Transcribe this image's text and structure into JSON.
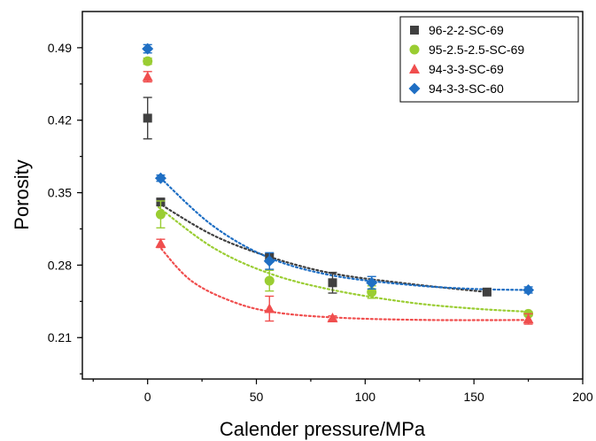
{
  "chart_data": {
    "type": "scatter",
    "xlabel": "Calender pressure/MPa",
    "ylabel": "Porosity",
    "xlim": [
      -30,
      200
    ],
    "ylim": [
      0.17,
      0.525
    ],
    "x_ticks": [
      0,
      50,
      100,
      150,
      200
    ],
    "x_tick_labels": [
      "0",
      "50",
      "100",
      "150",
      "200"
    ],
    "y_ticks": [
      0.21,
      0.28,
      0.35,
      0.42,
      0.49
    ],
    "y_tick_labels": [
      "0.21",
      "0.28",
      "0.35",
      "0.42",
      "0.49"
    ],
    "grid": false,
    "legend_position": "top-right",
    "series": [
      {
        "name": "96-2-2-SC-69",
        "marker": "square",
        "color": "#404040",
        "points": [
          {
            "x": 0,
            "y": 0.422,
            "err": 0.02
          },
          {
            "x": 6,
            "y": 0.341,
            "err": 0.003
          },
          {
            "x": 56,
            "y": 0.287,
            "err": 0.004
          },
          {
            "x": 85,
            "y": 0.263,
            "err": 0.01
          },
          {
            "x": 156,
            "y": 0.254,
            "err": 0.002
          }
        ],
        "fit": [
          {
            "x": 5,
            "y": 0.34
          },
          {
            "x": 30,
            "y": 0.309
          },
          {
            "x": 56,
            "y": 0.288
          },
          {
            "x": 85,
            "y": 0.272
          },
          {
            "x": 120,
            "y": 0.262
          },
          {
            "x": 156,
            "y": 0.254
          }
        ]
      },
      {
        "name": "95-2.5-2.5-SC-69",
        "marker": "circle",
        "color": "#9ACD32",
        "points": [
          {
            "x": 0,
            "y": 0.477,
            "err": 0.003
          },
          {
            "x": 6,
            "y": 0.329,
            "err": 0.013
          },
          {
            "x": 56,
            "y": 0.265,
            "err": 0.01
          },
          {
            "x": 103,
            "y": 0.254,
            "err": 0.006
          },
          {
            "x": 175,
            "y": 0.233,
            "err": 0.002
          }
        ],
        "fit": [
          {
            "x": 5,
            "y": 0.336
          },
          {
            "x": 30,
            "y": 0.297
          },
          {
            "x": 56,
            "y": 0.272
          },
          {
            "x": 85,
            "y": 0.256
          },
          {
            "x": 120,
            "y": 0.244
          },
          {
            "x": 150,
            "y": 0.238
          },
          {
            "x": 175,
            "y": 0.235
          }
        ]
      },
      {
        "name": "94-3-3-SC-69",
        "marker": "triangle",
        "color": "#F04E4E",
        "points": [
          {
            "x": 0,
            "y": 0.462,
            "err": 0.005
          },
          {
            "x": 6,
            "y": 0.301,
            "err": 0.004
          },
          {
            "x": 56,
            "y": 0.238,
            "err": 0.012
          },
          {
            "x": 85,
            "y": 0.229,
            "err": 0.002
          },
          {
            "x": 175,
            "y": 0.228,
            "err": 0.005
          }
        ],
        "fit": [
          {
            "x": 5,
            "y": 0.299
          },
          {
            "x": 20,
            "y": 0.265
          },
          {
            "x": 40,
            "y": 0.244
          },
          {
            "x": 60,
            "y": 0.234
          },
          {
            "x": 90,
            "y": 0.229
          },
          {
            "x": 130,
            "y": 0.227
          },
          {
            "x": 175,
            "y": 0.227
          }
        ]
      },
      {
        "name": "94-3-3-SC-60",
        "marker": "diamond",
        "color": "#1F6FC4",
        "points": [
          {
            "x": 0,
            "y": 0.489,
            "err": 0.004
          },
          {
            "x": 6,
            "y": 0.364,
            "err": 0.003
          },
          {
            "x": 56,
            "y": 0.284,
            "err": 0.008
          },
          {
            "x": 103,
            "y": 0.263,
            "err": 0.006
          },
          {
            "x": 175,
            "y": 0.256,
            "err": 0.003
          }
        ],
        "fit": [
          {
            "x": 6,
            "y": 0.364
          },
          {
            "x": 30,
            "y": 0.318
          },
          {
            "x": 56,
            "y": 0.287
          },
          {
            "x": 85,
            "y": 0.27
          },
          {
            "x": 120,
            "y": 0.261
          },
          {
            "x": 150,
            "y": 0.257
          },
          {
            "x": 175,
            "y": 0.256
          }
        ]
      }
    ]
  }
}
